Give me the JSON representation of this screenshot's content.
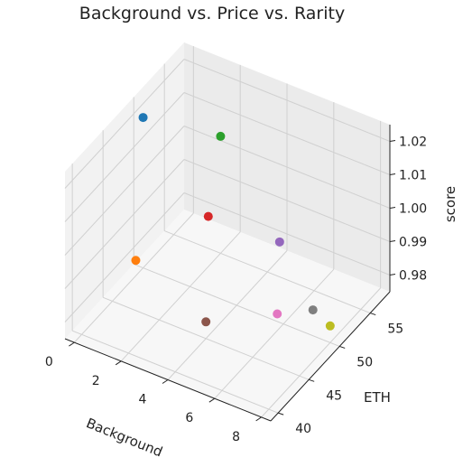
{
  "chart_data": {
    "type": "scatter",
    "projection": "3d",
    "title": "Background vs. Price vs. Rarity",
    "xlabel": "Background",
    "ylabel": "ETH",
    "zlabel": "score",
    "xlim": [
      -0.4,
      8.4
    ],
    "ylim": [
      38.8,
      58.2
    ],
    "zlim": [
      0.975,
      1.025
    ],
    "x_ticks": [
      0,
      2,
      4,
      6,
      8
    ],
    "y_ticks": [
      40,
      45,
      50,
      55
    ],
    "z_ticks": [
      0.98,
      0.99,
      1.0,
      1.01,
      1.02
    ],
    "x_tick_labels": [
      "0",
      "2",
      "4",
      "6",
      "8"
    ],
    "y_tick_labels": [
      "40",
      "45",
      "50",
      "55"
    ],
    "z_tick_labels": [
      "0.98",
      "0.99",
      "1.00",
      "1.01",
      "1.02"
    ],
    "grid": true,
    "points": [
      {
        "x": 0,
        "y": 50,
        "z": 1.02,
        "color": "#1f77b4"
      },
      {
        "x": 1,
        "y": 45,
        "z": 0.99,
        "color": "#ff7f0e"
      },
      {
        "x": 2,
        "y": 55,
        "z": 1.01,
        "color": "#2ca02c"
      },
      {
        "x": 2,
        "y": 53,
        "z": 0.99,
        "color": "#d62728"
      },
      {
        "x": 4,
        "y": 57,
        "z": 0.98,
        "color": "#9467bd"
      },
      {
        "x": 4,
        "y": 45,
        "z": 0.98,
        "color": "#8c564b"
      },
      {
        "x": 6,
        "y": 49,
        "z": 0.98,
        "color": "#e377c2"
      },
      {
        "x": 7,
        "y": 51,
        "z": 0.98,
        "color": "#7f7f7f"
      },
      {
        "x": 8,
        "y": 50,
        "z": 0.98,
        "color": "#bcbd22"
      }
    ]
  }
}
